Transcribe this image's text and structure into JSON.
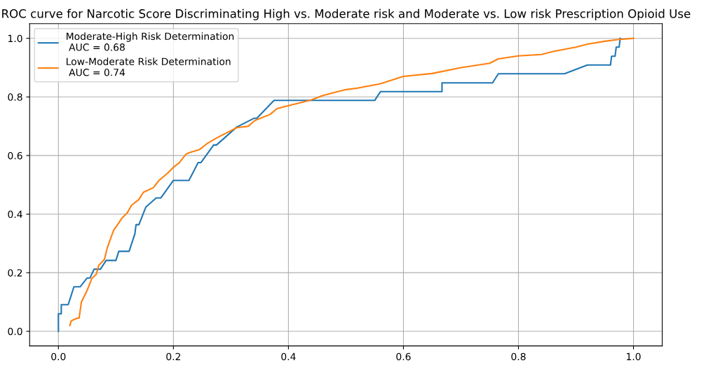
{
  "chart_data": {
    "type": "line",
    "title": "ROC curve for Narcotic Score Discriminating High vs. Moderate risk and Moderate vs. Low risk Prescription Opioid Use",
    "xlim": [
      -0.05,
      1.05
    ],
    "ylim": [
      -0.05,
      1.05
    ],
    "xticks": [
      {
        "value": 0,
        "label": "0.0"
      },
      {
        "value": 0.2,
        "label": "0.2"
      },
      {
        "value": 0.4,
        "label": "0.4"
      },
      {
        "value": 0.6,
        "label": "0.6"
      },
      {
        "value": 0.8,
        "label": "0.8"
      },
      {
        "value": 1,
        "label": "1.0"
      }
    ],
    "yticks": [
      {
        "value": 0,
        "label": "0.0"
      },
      {
        "value": 0.2,
        "label": "0.2"
      },
      {
        "value": 0.4,
        "label": "0.4"
      },
      {
        "value": 0.6,
        "label": "0.6"
      },
      {
        "value": 0.8,
        "label": "0.8"
      },
      {
        "value": 1,
        "label": "1.0"
      }
    ],
    "grid": true,
    "legend": "top left",
    "marker": "none",
    "line_style": "solid",
    "series": [
      {
        "name": "Moderate-High Risk Determination\n AUC = 0.68",
        "color": "#1f77b4",
        "x": [
          0,
          0,
          0.005,
          0.005,
          0.017,
          0.022,
          0.027,
          0.038,
          0.05,
          0.055,
          0.062,
          0.073,
          0.083,
          0.1,
          0.105,
          0.123,
          0.133,
          0.135,
          0.14,
          0.152,
          0.17,
          0.178,
          0.2,
          0.227,
          0.243,
          0.248,
          0.27,
          0.275,
          0.31,
          0.34,
          0.345,
          0.375,
          0.55,
          0.56,
          0.667,
          0.667,
          0.755,
          0.765,
          0.88,
          0.92,
          0.96,
          0.962,
          0.968,
          0.97,
          0.975,
          0.977
        ],
        "values": [
          0,
          0.06,
          0.06,
          0.091,
          0.091,
          0.121,
          0.152,
          0.152,
          0.182,
          0.182,
          0.212,
          0.212,
          0.242,
          0.242,
          0.273,
          0.273,
          0.333,
          0.364,
          0.364,
          0.424,
          0.455,
          0.455,
          0.515,
          0.515,
          0.576,
          0.576,
          0.636,
          0.636,
          0.697,
          0.727,
          0.727,
          0.788,
          0.788,
          0.818,
          0.818,
          0.848,
          0.848,
          0.879,
          0.879,
          0.909,
          0.909,
          0.939,
          0.939,
          0.97,
          0.97,
          1.0
        ]
      },
      {
        "name": "Low-Moderate Risk Determination\n AUC = 0.74",
        "color": "#ff7f0e",
        "x": [
          0.02,
          0.022,
          0.027,
          0.033,
          0.036,
          0.04,
          0.05,
          0.058,
          0.066,
          0.07,
          0.08,
          0.085,
          0.096,
          0.105,
          0.11,
          0.12,
          0.127,
          0.14,
          0.148,
          0.165,
          0.175,
          0.19,
          0.2,
          0.21,
          0.222,
          0.228,
          0.245,
          0.258,
          0.275,
          0.29,
          0.31,
          0.33,
          0.342,
          0.368,
          0.38,
          0.4,
          0.42,
          0.44,
          0.46,
          0.5,
          0.52,
          0.56,
          0.6,
          0.65,
          0.7,
          0.75,
          0.765,
          0.8,
          0.84,
          0.86,
          0.9,
          0.92,
          0.95,
          0.97,
          0.98,
          1.0
        ],
        "values": [
          0.02,
          0.035,
          0.04,
          0.045,
          0.045,
          0.1,
          0.14,
          0.18,
          0.195,
          0.225,
          0.245,
          0.285,
          0.345,
          0.37,
          0.385,
          0.405,
          0.43,
          0.45,
          0.475,
          0.49,
          0.515,
          0.54,
          0.56,
          0.575,
          0.605,
          0.61,
          0.62,
          0.64,
          0.66,
          0.675,
          0.695,
          0.7,
          0.72,
          0.74,
          0.76,
          0.77,
          0.78,
          0.79,
          0.805,
          0.825,
          0.83,
          0.845,
          0.87,
          0.88,
          0.9,
          0.915,
          0.93,
          0.94,
          0.945,
          0.955,
          0.97,
          0.98,
          0.99,
          0.995,
          0.997,
          1.0
        ]
      }
    ]
  }
}
